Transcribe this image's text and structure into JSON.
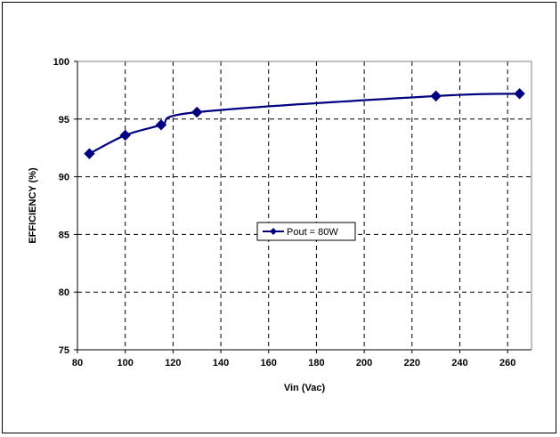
{
  "chart_data": {
    "type": "line",
    "xlabel": "Vin (Vac)",
    "ylabel": "EFFICIENCY (%)",
    "xlim": [
      80,
      270
    ],
    "ylim": [
      75,
      100
    ],
    "xticks": [
      80,
      100,
      120,
      140,
      160,
      180,
      200,
      220,
      240,
      260
    ],
    "yticks": [
      75,
      80,
      85,
      90,
      95,
      100
    ],
    "grid": true,
    "legend_position": "center",
    "series": [
      {
        "name": "Pout = 80W",
        "color": "#000080",
        "marker": "diamond",
        "x": [
          85,
          100,
          115,
          130,
          230,
          265
        ],
        "y": [
          92.0,
          93.6,
          94.5,
          95.6,
          97.0,
          97.2
        ]
      }
    ]
  }
}
